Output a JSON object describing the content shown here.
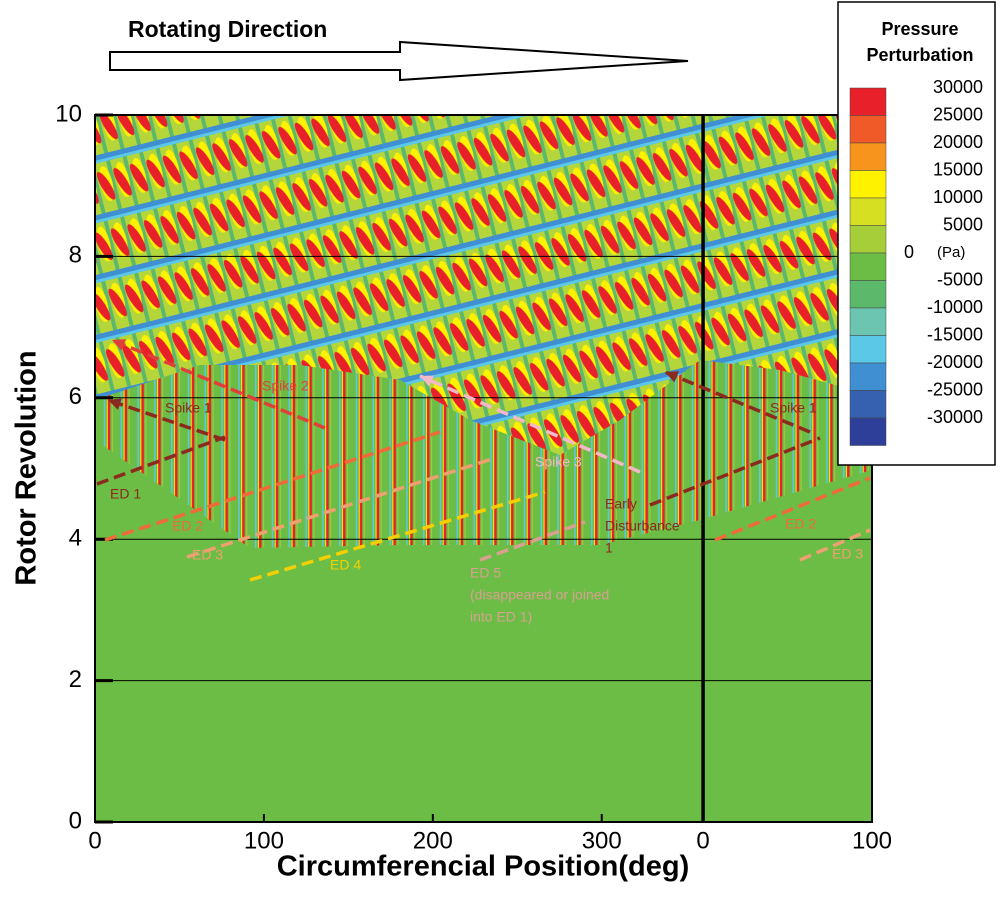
{
  "chart_data": {
    "type": "contour",
    "direction_label": "Rotating Direction",
    "xlabel": "Circumferencial Position(deg)",
    "ylabel": "Rotor Revolution",
    "xlim": [
      0,
      460
    ],
    "xticks": [
      0,
      100,
      200,
      300,
      {
        "value": 360,
        "label": "0"
      },
      {
        "value": 460,
        "label": "100"
      }
    ],
    "wrap_at": 360,
    "ylim": [
      0,
      10
    ],
    "yticks": [
      0,
      2,
      4,
      6,
      8,
      10
    ],
    "grid": true,
    "legend": {
      "title_lines": [
        "Pressure",
        "Perturbation"
      ],
      "unit": "(Pa)",
      "levels": [
        30000,
        25000,
        20000,
        15000,
        10000,
        5000,
        0,
        -5000,
        -10000,
        -15000,
        -20000,
        -25000,
        -30000
      ],
      "colors": [
        "#e8202a",
        "#f05a28",
        "#f7941d",
        "#fff200",
        "#d7df23",
        "#a6ce39",
        "#6cbd45",
        "#5cb86a",
        "#6cc5b0",
        "#5bc8e8",
        "#3f8fd2",
        "#3660b0",
        "#2d3f99"
      ]
    },
    "annotations": [
      {
        "lines": [
          "Spike 2"
        ],
        "color": "#e0403a"
      },
      {
        "lines": [
          "Spike 1"
        ],
        "color": "#8b2a1e"
      },
      {
        "lines": [
          "ED 1"
        ],
        "color": "#8b2a1e"
      },
      {
        "lines": [
          "ED 2"
        ],
        "color": "#f06a3a"
      },
      {
        "lines": [
          "ED 3"
        ],
        "color": "#eea070"
      },
      {
        "lines": [
          "ED 4"
        ],
        "color": "#f5d000"
      },
      {
        "lines": [
          "Spike 3"
        ],
        "color": "#f5b8c8"
      },
      {
        "lines": [
          "ED 5",
          "(disappeared or joined",
          "into ED 1)"
        ],
        "color": "#d8a090"
      },
      {
        "lines": [
          "Early",
          "Disturbance",
          "1"
        ],
        "color": "#8b2a1e"
      },
      {
        "lines": [
          "Spike 1"
        ],
        "color": "#8b2a1e"
      },
      {
        "lines": [
          "ED 2"
        ],
        "color": "#f06a3a"
      },
      {
        "lines": [
          "ED 3"
        ],
        "color": "#eea070"
      }
    ]
  }
}
